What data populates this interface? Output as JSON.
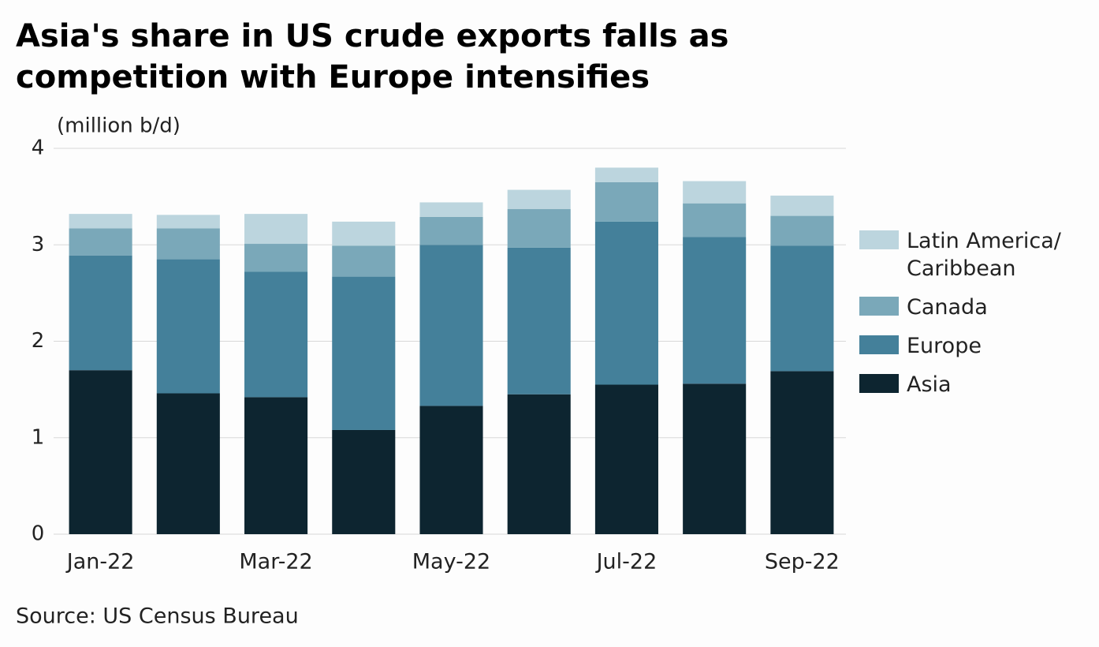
{
  "chart_data": {
    "type": "stacked_bar",
    "title": "Asia's share in US crude exports falls as competition with Europe intensifies",
    "y_label": "(million b/d)",
    "source": "Source: US Census Bureau",
    "categories": [
      "Jan-22",
      null,
      "Mar-22",
      null,
      "May-22",
      null,
      "Jul-22",
      null,
      "Sep-22"
    ],
    "series": [
      {
        "name": "Asia",
        "color": "#0d2530",
        "values": [
          1.7,
          1.46,
          1.42,
          1.08,
          1.33,
          1.45,
          1.55,
          1.56,
          1.69
        ]
      },
      {
        "name": "Europe",
        "color": "#44809a",
        "values": [
          1.19,
          1.39,
          1.3,
          1.59,
          1.67,
          1.52,
          1.69,
          1.52,
          1.3
        ]
      },
      {
        "name": "Canada",
        "color": "#7aa8b9",
        "values": [
          0.28,
          0.32,
          0.29,
          0.32,
          0.29,
          0.4,
          0.41,
          0.35,
          0.31
        ]
      },
      {
        "name": "Latin America/ Caribbean",
        "color": "#bcd5de",
        "values": [
          0.15,
          0.14,
          0.31,
          0.25,
          0.15,
          0.2,
          0.15,
          0.23,
          0.21
        ]
      }
    ],
    "ylim": [
      0,
      4
    ],
    "yticks": [
      0,
      1,
      2,
      3,
      4
    ],
    "grid": true,
    "legend": "right"
  }
}
